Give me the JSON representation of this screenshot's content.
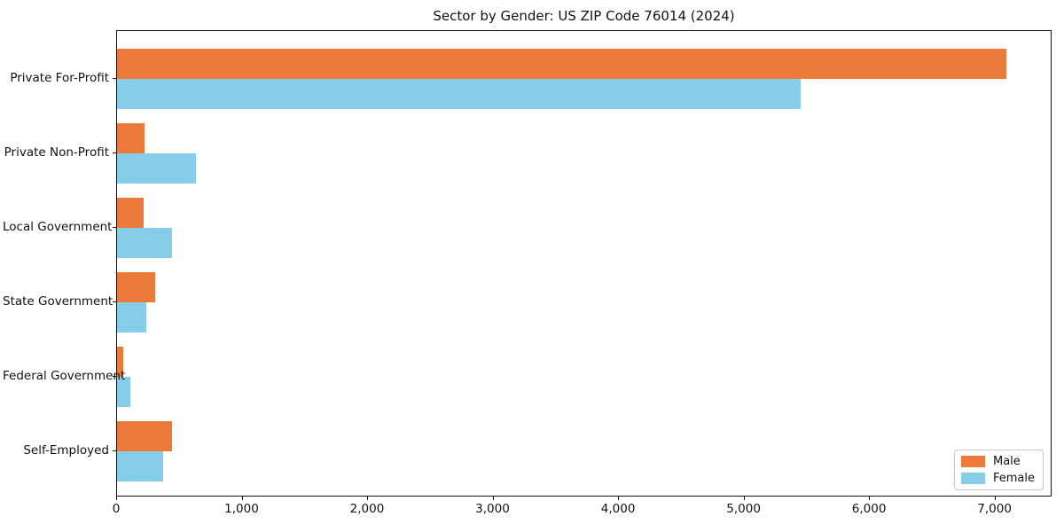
{
  "chart_data": {
    "type": "bar",
    "orientation": "horizontal",
    "title": "Sector by Gender: US ZIP Code 76014 (2024)",
    "categories": [
      "Private For-Profit",
      "Private Non-Profit",
      "Local Government",
      "State Government",
      "Federal Government",
      "Self-Employed"
    ],
    "series": [
      {
        "name": "Male",
        "color": "#EB7A3B",
        "values": [
          7090,
          220,
          210,
          300,
          50,
          440
        ]
      },
      {
        "name": "Female",
        "color": "#86CDE9",
        "values": [
          5450,
          630,
          435,
          230,
          105,
          365
        ]
      }
    ],
    "xlabel": "",
    "ylabel": "",
    "xlim": [
      0,
      7455
    ],
    "xticks": [
      {
        "value": 0,
        "label": "0"
      },
      {
        "value": 1000,
        "label": "1,000"
      },
      {
        "value": 2000,
        "label": "2,000"
      },
      {
        "value": 3000,
        "label": "3,000"
      },
      {
        "value": 4000,
        "label": "4,000"
      },
      {
        "value": 5000,
        "label": "5,000"
      },
      {
        "value": 6000,
        "label": "6,000"
      },
      {
        "value": 7000,
        "label": "7,000"
      }
    ],
    "grid": false,
    "legend": {
      "position": "lower right",
      "entries": [
        "Male",
        "Female"
      ]
    }
  }
}
